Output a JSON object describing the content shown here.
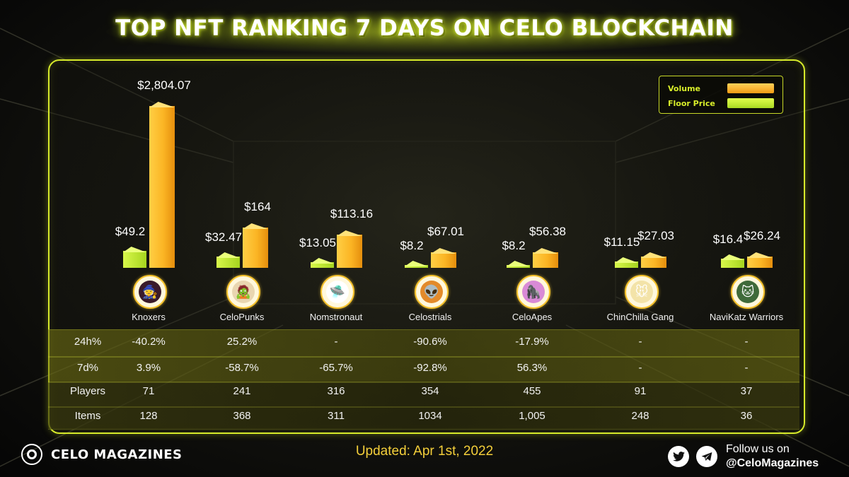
{
  "title": "TOP NFT RANKING 7 DAYS ON CELO BLOCKCHAIN",
  "colors": {
    "accent": "#d6ea2a",
    "volume": "#f7a91c",
    "floor_price": "#b8e03a",
    "updated": "#f4cf3a"
  },
  "legend": [
    {
      "label": "Volume",
      "color": "#f7b52a"
    },
    {
      "label": "Floor Price",
      "color": "#c9ef2e"
    }
  ],
  "chart_data": {
    "type": "bar",
    "title": "TOP NFT RANKING 7 DAYS ON CELO BLOCKCHAIN",
    "categories": [
      "Knoxers",
      "CeloPunks",
      "Nomstronaut",
      "Celostrials",
      "CeloApes",
      "ChinChilla Gang",
      "NaviKatz Warriors"
    ],
    "series": [
      {
        "name": "Floor Price",
        "values": [
          49.2,
          32.47,
          13.05,
          8.2,
          8.2,
          11.15,
          16.4
        ],
        "labels": [
          "$49.2",
          "$32.47",
          "$13.05",
          "$8.2",
          "$8.2",
          "$11.15",
          "$16.4"
        ]
      },
      {
        "name": "Volume",
        "values": [
          2804.07,
          164,
          113.16,
          67.01,
          56.38,
          27.03,
          26.24
        ],
        "labels": [
          "$2,804.07",
          "$164",
          "$113.16",
          "$67.01",
          "$56.38",
          "$27.03",
          "$26.24"
        ]
      }
    ],
    "legend_position": "top-right",
    "grid": false
  },
  "projects": [
    {
      "name": "Knoxers",
      "icon": "knoxers-logo-icon",
      "glyph": "🧙",
      "bg": "#3a1a2a"
    },
    {
      "name": "CeloPunks",
      "icon": "celopunks-logo-icon",
      "glyph": "🧟",
      "bg": "#e9d6b0"
    },
    {
      "name": "Nomstronaut",
      "icon": "nomstronaut-logo-icon",
      "glyph": "🛸",
      "bg": "#ffffff"
    },
    {
      "name": "Celostrials",
      "icon": "celostrials-logo-icon",
      "glyph": "👽",
      "bg": "#e38a2a"
    },
    {
      "name": "CeloApes",
      "icon": "celoapes-logo-icon",
      "glyph": "🦍",
      "bg": "#d98ad6"
    },
    {
      "name": "ChinChilla Gang",
      "icon": "chinchilla-logo-icon",
      "glyph": "🐭",
      "bg": "#f3e3a8"
    },
    {
      "name": "NaviKatz Warriors",
      "icon": "navikatz-logo-icon",
      "glyph": "🐱",
      "bg": "#3f6a3a"
    }
  ],
  "table": {
    "rows": [
      {
        "label": "24h%",
        "values": [
          "-40.2%",
          "25.2%",
          "-",
          "-90.6%",
          "-17.9%",
          "-",
          "-"
        ]
      },
      {
        "label": "7d%",
        "values": [
          "3.9%",
          "-58.7%",
          "-65.7%",
          "-92.8%",
          "56.3%",
          "-",
          "-"
        ]
      },
      {
        "label": "Players",
        "values": [
          "71",
          "241",
          "316",
          "354",
          "455",
          "91",
          "37"
        ]
      },
      {
        "label": "Items",
        "values": [
          "128",
          "368",
          "311",
          "1034",
          "1,005",
          "248",
          "36"
        ]
      }
    ]
  },
  "footer": {
    "brand": "CELO MAGAZINES",
    "updated": "Updated: Apr 1st, 2022",
    "follow_line1": "Follow us on",
    "follow_line2": "@CeloMagazines",
    "twitter_icon": "twitter-icon",
    "telegram_icon": "telegram-icon"
  }
}
